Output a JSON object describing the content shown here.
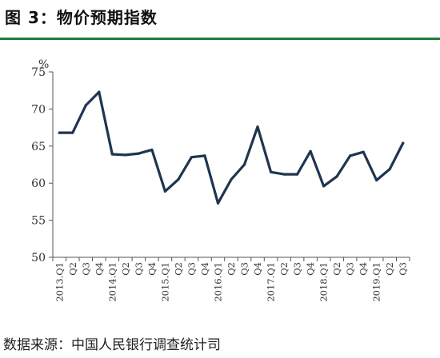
{
  "figure": {
    "title": "图 3：物价预期指数",
    "source": "数据来源：中国人民银行调查统计司"
  },
  "chart_data": {
    "type": "line",
    "title": "",
    "ylabel": "%",
    "xlabel": "",
    "ylim": [
      50,
      75
    ],
    "yticks": [
      50,
      55,
      60,
      65,
      70,
      75
    ],
    "grid": false,
    "line_color": "#1f3550",
    "categories": [
      "2013.Q1",
      "Q2",
      "Q3",
      "Q4",
      "2014.Q1",
      "Q2",
      "Q3",
      "Q4",
      "2015.Q1",
      "Q2",
      "Q3",
      "Q4",
      "2016.Q1",
      "Q2",
      "Q3",
      "Q4",
      "2017.Q1",
      "Q2",
      "Q3",
      "Q4",
      "2018.Q1",
      "Q2",
      "Q3",
      "Q4",
      "2019.Q1",
      "Q2",
      "Q3"
    ],
    "series": [
      {
        "values": [
          66.8,
          66.8,
          70.5,
          72.3,
          63.9,
          63.8,
          64.0,
          64.5,
          58.9,
          60.5,
          63.5,
          63.7,
          57.3,
          60.5,
          62.5,
          67.6,
          61.5,
          61.2,
          61.2,
          64.3,
          59.6,
          60.9,
          63.7,
          64.2,
          60.4,
          61.9,
          65.4
        ]
      }
    ]
  }
}
